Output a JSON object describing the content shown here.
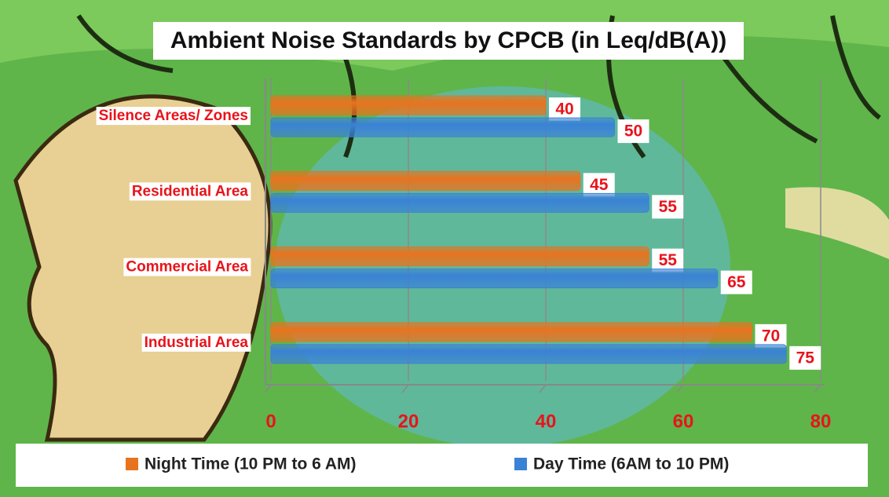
{
  "chart_data": {
    "type": "bar",
    "orientation": "horizontal",
    "title": "Ambient Noise Standards by CPCB (in Leq/dB(A))",
    "categories": [
      "Silence Areas/ Zones",
      "Residential Area",
      "Commercial Area",
      "Industrial Area"
    ],
    "series": [
      {
        "name": "Night Time (10 PM to 6 AM)",
        "color": "#e8731f",
        "values": [
          40,
          45,
          55,
          70
        ]
      },
      {
        "name": "Day Time (6AM to 10 PM)",
        "color": "#3a82d6",
        "values": [
          50,
          55,
          65,
          75
        ]
      }
    ],
    "xlim": [
      0,
      80
    ],
    "xticks": [
      0,
      20,
      40,
      60,
      80
    ],
    "grid": true,
    "legend": "bottom"
  }
}
